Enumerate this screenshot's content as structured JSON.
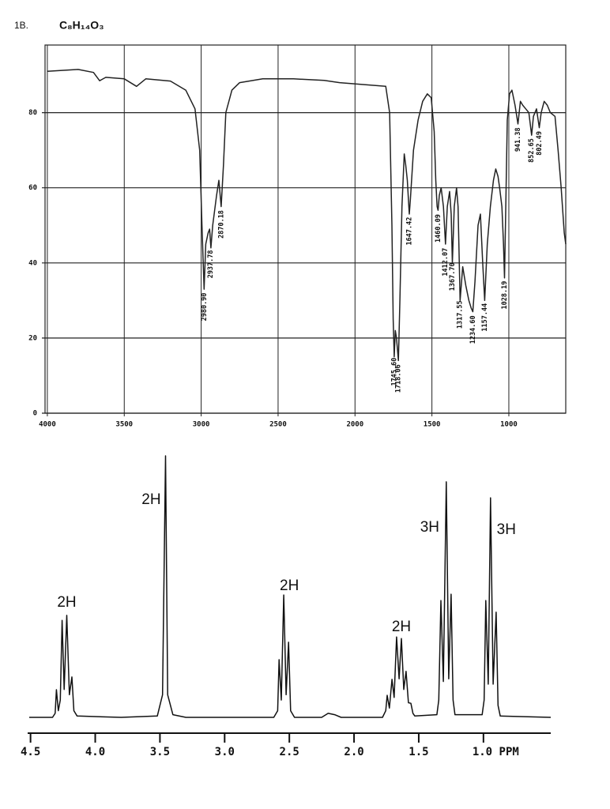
{
  "label": "1B.",
  "formula": "C₈H₁₄O₃",
  "chart_data": [
    {
      "type": "line",
      "grid": true,
      "frame": true,
      "color": "#222",
      "xlim": [
        4015,
        630
      ],
      "ylim": [
        0,
        98
      ],
      "xticks": [
        4000,
        3500,
        3000,
        2500,
        2000,
        1500,
        1000
      ],
      "yticks": [
        0,
        20,
        40,
        60,
        80
      ],
      "x": [
        4000,
        3800,
        3700,
        3660,
        3620,
        3500,
        3420,
        3360,
        3200,
        3100,
        3040,
        3010,
        2995,
        2981,
        2970,
        2955,
        2945,
        2937,
        2925,
        2900,
        2885,
        2870,
        2855,
        2840,
        2800,
        2750,
        2600,
        2400,
        2200,
        2100,
        1800,
        1775,
        1760,
        1752,
        1745,
        1738,
        1730,
        1718,
        1708,
        1695,
        1680,
        1670,
        1660,
        1650,
        1647,
        1640,
        1620,
        1590,
        1560,
        1530,
        1505,
        1485,
        1475,
        1466,
        1460,
        1452,
        1440,
        1425,
        1412,
        1400,
        1385,
        1375,
        1367,
        1355,
        1340,
        1330,
        1317,
        1300,
        1280,
        1260,
        1245,
        1234,
        1220,
        1200,
        1185,
        1170,
        1157,
        1140,
        1120,
        1100,
        1085,
        1070,
        1060,
        1045,
        1035,
        1028,
        1020,
        1010,
        995,
        980,
        960,
        941,
        925,
        910,
        890,
        870,
        852,
        840,
        820,
        802,
        790,
        770,
        750,
        730,
        700,
        680,
        660,
        640,
        630
      ],
      "series": [
        {
          "values": [
            91,
            91.5,
            90.7,
            88.5,
            89.4,
            89,
            87,
            89,
            88.4,
            86,
            81,
            70,
            50,
            33,
            45,
            48,
            49,
            44,
            50,
            58,
            62,
            55,
            66,
            80,
            86,
            88,
            89,
            89,
            88.6,
            88,
            87,
            80,
            50,
            25,
            15,
            22,
            20,
            14,
            30,
            55,
            69,
            66,
            62,
            55,
            53,
            57,
            70,
            78,
            83,
            85,
            84,
            75,
            62,
            55,
            54,
            58,
            60,
            55,
            45,
            55,
            59,
            53,
            40,
            55,
            60,
            55,
            30,
            39,
            34,
            30,
            28,
            27,
            35,
            50,
            53,
            40,
            30,
            45,
            55,
            62,
            65,
            63,
            60,
            55,
            45,
            36,
            55,
            78,
            85,
            86,
            82,
            77,
            83,
            82,
            81,
            80,
            74,
            79,
            81,
            76,
            80,
            83,
            82,
            80,
            79,
            70,
            60,
            48,
            45
          ]
        }
      ],
      "peaks": [
        {
          "value": 2980.9,
          "label": "2980.90"
        },
        {
          "value": 2937.78,
          "label": "2937.78"
        },
        {
          "value": 2870.18,
          "label": "2870.18"
        },
        {
          "value": 1745.6,
          "label": "1745.60"
        },
        {
          "value": 1718.06,
          "label": "1718.06"
        },
        {
          "value": 1647.42,
          "label": "1647.42"
        },
        {
          "value": 1460.09,
          "label": "1460.09"
        },
        {
          "value": 1412.07,
          "label": "1412.07"
        },
        {
          "value": 1367.7,
          "label": "1367.70"
        },
        {
          "value": 1317.55,
          "label": "1317.55"
        },
        {
          "value": 1234.6,
          "label": "1234.60"
        },
        {
          "value": 1157.44,
          "label": "1157.44"
        },
        {
          "value": 1028.19,
          "label": "1028.19"
        },
        {
          "value": 941.38,
          "label": "941.38"
        },
        {
          "value": 852.65,
          "label": "852.65"
        },
        {
          "value": 802.49,
          "label": "802.49"
        }
      ]
    },
    {
      "type": "line",
      "grid": false,
      "frame": false,
      "color": "#111",
      "xlim": [
        4.51,
        0.48
      ],
      "ylim": [
        0,
        100
      ],
      "xticks": [
        4.5,
        {
          "value": 4.0,
          "label": "4.0"
        },
        3.5,
        {
          "value": 3.0,
          "label": "3.0"
        },
        2.5,
        {
          "value": 2.0,
          "label": "2.0"
        },
        1.5,
        {
          "value": 1.0,
          "label": "1.0 PPM"
        }
      ],
      "x": [
        4.51,
        4.33,
        4.31,
        4.3,
        4.285,
        4.27,
        4.256,
        4.24,
        4.22,
        4.2,
        4.18,
        4.165,
        4.14,
        3.8,
        3.52,
        3.48,
        3.457,
        3.44,
        3.4,
        3.3,
        2.62,
        2.59,
        2.579,
        2.562,
        2.543,
        2.525,
        2.506,
        2.49,
        2.46,
        2.25,
        2.2,
        2.15,
        2.1,
        1.78,
        1.755,
        1.744,
        1.727,
        1.707,
        1.69,
        1.671,
        1.652,
        1.634,
        1.616,
        1.598,
        1.58,
        1.561,
        1.545,
        1.53,
        1.36,
        1.345,
        1.329,
        1.31,
        1.287,
        1.268,
        1.25,
        1.235,
        1.22,
        1.01,
        0.995,
        0.982,
        0.963,
        0.945,
        0.925,
        0.902,
        0.887,
        0.87,
        0.48
      ],
      "series": [
        {
          "values": [
            1.5,
            1.5,
            3,
            11.9,
            4,
            8,
            38,
            12,
            39.9,
            10,
            16.7,
            4,
            2,
            1.5,
            2,
            10,
            100,
            10,
            2.5,
            1.5,
            1.5,
            4,
            23.2,
            8,
            47.6,
            10,
            29.8,
            4,
            1.5,
            1.5,
            3,
            2.5,
            1.5,
            1.5,
            4,
            9.8,
            5,
            15.8,
            9,
            31.8,
            16,
            31.2,
            12,
            18.8,
            7,
            6.8,
            3,
            2,
            2.5,
            8,
            45.5,
            15,
            90.2,
            16,
            47.9,
            8,
            2.5,
            2.5,
            8,
            45.5,
            14,
            84.2,
            14,
            41.1,
            6,
            2,
            1.5
          ]
        }
      ],
      "annotations": [
        {
          "text": "2H",
          "x": 4.22,
          "y": 44.6
        },
        {
          "text": "2H",
          "x": 3.567,
          "y": 83.3
        },
        {
          "text": "2H",
          "x": 2.5,
          "y": 50.9
        },
        {
          "text": "2H",
          "x": 1.634,
          "y": 35.4
        },
        {
          "text": "3H",
          "x": 1.415,
          "y": 72.9
        },
        {
          "text": "3H",
          "x": 0.823,
          "y": 72
        }
      ]
    }
  ]
}
